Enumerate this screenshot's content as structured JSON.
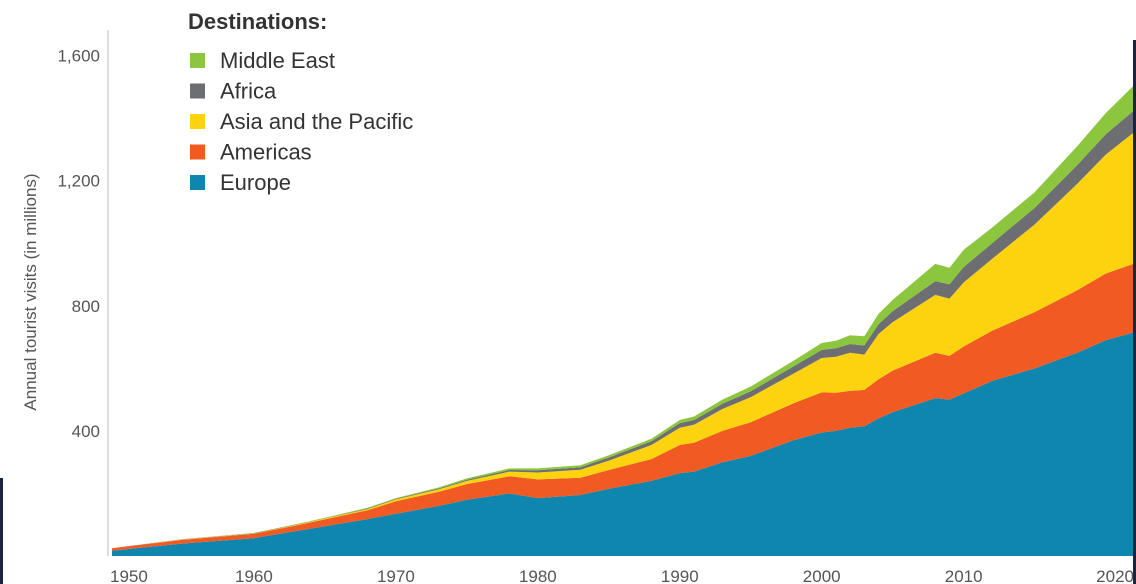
{
  "chart_data": {
    "type": "area",
    "stacked": true,
    "title": "",
    "xlabel": "",
    "ylabel": "Annual tourist visits (in millions)",
    "xlim": [
      1950,
      2022
    ],
    "ylim": [
      0,
      1650
    ],
    "x_ticks": [
      "1950",
      "1960",
      "1970",
      "1980",
      "1990",
      "2000",
      "2010",
      "2020"
    ],
    "y_ticks": [
      "400",
      "800",
      "1,200",
      "1,600"
    ],
    "legend_title": "Destinations:",
    "legend_position": "top-left",
    "legend": [
      {
        "name": "Middle East",
        "color": "#8cc63f"
      },
      {
        "name": "Africa",
        "color": "#6d6e71"
      },
      {
        "name": "Asia and the Pacific",
        "color": "#fdd20e"
      },
      {
        "name": "Americas",
        "color": "#f15a22"
      },
      {
        "name": "Europe",
        "color": "#0e86ad"
      }
    ],
    "x": [
      1950,
      1955,
      1960,
      1963,
      1965,
      1968,
      1970,
      1973,
      1975,
      1978,
      1980,
      1983,
      1985,
      1988,
      1990,
      1991,
      1993,
      1995,
      1998,
      2000,
      2001,
      2002,
      2003,
      2004,
      2005,
      2008,
      2009,
      2010,
      2012,
      2015,
      2018,
      2020,
      2022
    ],
    "series": [
      {
        "name": "Europe",
        "color": "#0e86ad",
        "values": [
          17,
          40,
          57,
          80,
          95,
          118,
          135,
          160,
          180,
          200,
          185,
          195,
          215,
          240,
          265,
          270,
          300,
          320,
          370,
          395,
          400,
          410,
          415,
          440,
          460,
          505,
          500,
          520,
          560,
          600,
          650,
          690,
          715
        ]
      },
      {
        "name": "Americas",
        "color": "#f15a22",
        "values": [
          8,
          12,
          14,
          18,
          22,
          28,
          40,
          45,
          50,
          55,
          60,
          55,
          60,
          70,
          90,
          92,
          100,
          108,
          118,
          128,
          122,
          118,
          116,
          125,
          133,
          145,
          140,
          150,
          160,
          180,
          200,
          213,
          220
        ]
      },
      {
        "name": "Asia and the Pacific",
        "color": "#fdd20e",
        "values": [
          0,
          1,
          1,
          2,
          3,
          4,
          6,
          8,
          10,
          15,
          22,
          26,
          30,
          45,
          55,
          58,
          70,
          80,
          95,
          110,
          115,
          122,
          113,
          145,
          155,
          185,
          183,
          205,
          230,
          280,
          340,
          380,
          420
        ]
      },
      {
        "name": "Africa",
        "color": "#6d6e71",
        "values": [
          0,
          1,
          1,
          1,
          1,
          2,
          2,
          3,
          4,
          5,
          7,
          8,
          10,
          12,
          15,
          15,
          17,
          19,
          23,
          26,
          27,
          28,
          29,
          31,
          35,
          44,
          46,
          49,
          50,
          53,
          60,
          65,
          70
        ]
      },
      {
        "name": "Middle East",
        "color": "#8cc63f",
        "values": [
          0,
          0,
          1,
          1,
          1,
          2,
          2,
          3,
          4,
          5,
          6,
          6,
          7,
          8,
          10,
          11,
          13,
          15,
          18,
          22,
          24,
          28,
          30,
          33,
          36,
          55,
          53,
          55,
          50,
          50,
          60,
          68,
          80
        ]
      }
    ]
  }
}
